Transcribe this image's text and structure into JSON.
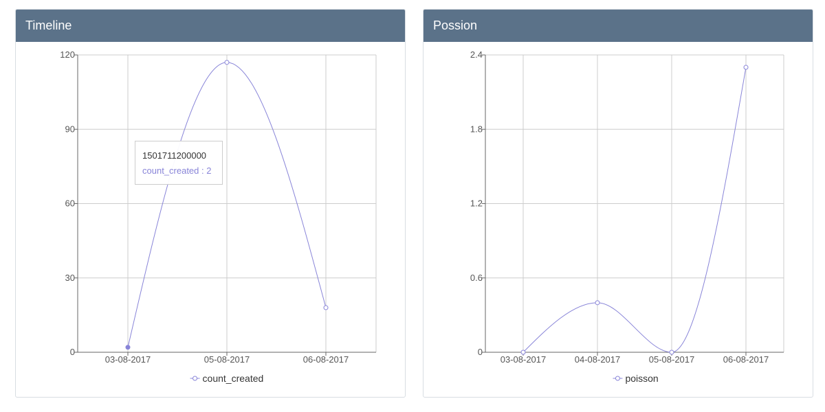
{
  "colors": {
    "header_bg": "#5b7289",
    "series": "#8884d8",
    "grid": "#cccccc",
    "axis": "#666666"
  },
  "panels": [
    {
      "title": "Timeline",
      "tooltip": {
        "label": "1501711200000",
        "series_name": "count_created",
        "value_text": "2"
      }
    },
    {
      "title": "Possion"
    }
  ],
  "chart_data": [
    {
      "type": "line",
      "curve": "monotone",
      "grid": true,
      "legend_placement": "bottom-center",
      "categories": [
        "03-08-2017",
        "05-08-2017",
        "06-08-2017"
      ],
      "series": [
        {
          "name": "count_created",
          "values": [
            2,
            117,
            18
          ]
        }
      ],
      "ylim": [
        0,
        120
      ],
      "yticks": [
        0,
        30,
        60,
        90,
        120
      ],
      "ytick_labels": [
        "0",
        "30",
        "60",
        "90",
        "120"
      ],
      "active_index": 0
    },
    {
      "type": "line",
      "curve": "monotone",
      "grid": true,
      "legend_placement": "bottom-center",
      "categories": [
        "03-08-2017",
        "04-08-2017",
        "05-08-2017",
        "06-08-2017"
      ],
      "series": [
        {
          "name": "poisson",
          "values": [
            0,
            0.4,
            0,
            2.3
          ]
        }
      ],
      "ylim": [
        0,
        2.4
      ],
      "yticks": [
        0,
        0.6,
        1.2,
        1.8,
        2.4
      ],
      "ytick_labels": [
        "0",
        "0.6",
        "1.2",
        "1.8",
        "2.4"
      ]
    }
  ]
}
